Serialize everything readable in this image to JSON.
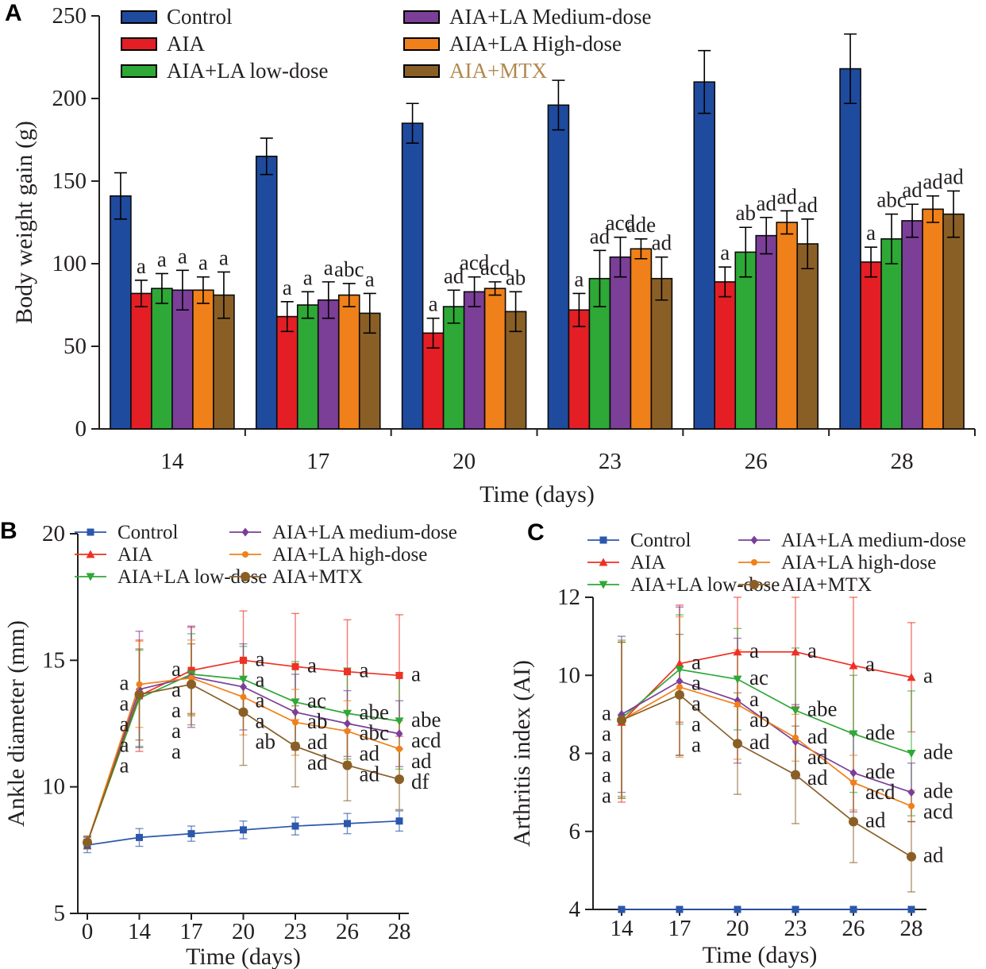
{
  "figure_title": "",
  "chart_data": [
    {
      "id": "A",
      "panel_letter": "A",
      "type": "bar",
      "xlabel": "Time (days)",
      "ylabel": "Body weight gain (g)",
      "ylim": [
        0,
        250
      ],
      "yticks": [
        0,
        50,
        100,
        150,
        200,
        250
      ],
      "categories": [
        "14",
        "17",
        "20",
        "23",
        "26",
        "28"
      ],
      "series": [
        {
          "name": "Control",
          "color": "#1F4B9E",
          "values": [
            141,
            165,
            185,
            196,
            210,
            218
          ],
          "errors": [
            14,
            11,
            12,
            15,
            19,
            21
          ],
          "sig": [
            "",
            "",
            "",
            "",
            "",
            ""
          ]
        },
        {
          "name": "AIA",
          "color": "#E41E25",
          "values": [
            82,
            68,
            58,
            72,
            89,
            101
          ],
          "errors": [
            8,
            9,
            9,
            10,
            9,
            9
          ],
          "sig": [
            "a",
            "a",
            "a",
            "a",
            "a",
            "a"
          ]
        },
        {
          "name": "AIA+LA low-dose",
          "color": "#2EA836",
          "values": [
            85,
            75,
            74,
            91,
            107,
            115
          ],
          "errors": [
            9,
            8,
            10,
            17,
            15,
            15
          ],
          "sig": [
            "a",
            "a",
            "ad",
            "ad",
            "ab",
            "abc"
          ]
        },
        {
          "name": "AIA+LA Medium-dose",
          "color": "#7B3F98",
          "values": [
            84,
            78,
            83,
            104,
            117,
            126
          ],
          "errors": [
            12,
            11,
            9,
            12,
            11,
            10
          ],
          "sig": [
            "a",
            "a",
            "acd",
            "acd",
            "ad",
            "ad"
          ]
        },
        {
          "name": "AIA+LA High-dose",
          "color": "#F08019",
          "values": [
            84,
            81,
            85,
            109,
            125,
            133
          ],
          "errors": [
            8,
            7,
            4,
            6,
            7,
            8
          ],
          "sig": [
            "a",
            "abc",
            "acd",
            "ade",
            "ad",
            "ad"
          ]
        },
        {
          "name": "AIA+MTX",
          "color": "#8A5F26",
          "values": [
            81,
            70,
            71,
            91,
            112,
            130
          ],
          "errors": [
            14,
            12,
            12,
            13,
            15,
            14
          ],
          "sig": [
            "a",
            "a",
            "ab",
            "ad",
            "ad",
            "ad"
          ],
          "legend_text_color": "#B2884E"
        }
      ],
      "legend_columns": [
        [
          "Control",
          "AIA",
          "AIA+LA low-dose"
        ],
        [
          "AIA+LA Medium-dose",
          "AIA+LA High-dose",
          "AIA+MTX"
        ]
      ]
    },
    {
      "id": "B",
      "panel_letter": "B",
      "type": "line",
      "xlabel": "Time (days)",
      "ylabel": "Ankle diameter (mm)",
      "ylim": [
        5,
        20
      ],
      "yticks": [
        5,
        10,
        15,
        20
      ],
      "categories": [
        "0",
        "14",
        "17",
        "20",
        "23",
        "26",
        "28"
      ],
      "sig_sides": [
        "right",
        "left",
        "left",
        "right",
        "right",
        "right",
        "right"
      ],
      "series": [
        {
          "name": "Control",
          "color": "#2B57AC",
          "marker": "square",
          "values": [
            7.7,
            8.0,
            8.15,
            8.3,
            8.45,
            8.55,
            8.65
          ],
          "errors": [
            0.3,
            0.35,
            0.3,
            0.35,
            0.35,
            0.4,
            0.4
          ],
          "sig": [
            "",
            "",
            "",
            "",
            "",
            "",
            ""
          ]
        },
        {
          "name": "AIA",
          "color": "#EE3124",
          "marker": "triangle-up",
          "plot_marker": "square",
          "values": [
            7.8,
            13.6,
            14.6,
            15.0,
            14.75,
            14.55,
            14.4
          ],
          "errors": [
            0.25,
            2.2,
            1.7,
            1.95,
            2.1,
            2.05,
            2.4
          ],
          "sig": [
            "",
            "a",
            "a",
            "a",
            "a",
            "a",
            "a"
          ]
        },
        {
          "name": "AIA+LA low-dose",
          "color": "#2EA836",
          "marker": "triangle-down",
          "values": [
            7.8,
            13.5,
            14.45,
            14.25,
            13.35,
            12.9,
            12.6
          ],
          "errors": [
            0.25,
            1.9,
            1.6,
            1.3,
            1.6,
            1.8,
            1.9
          ],
          "sig": [
            "",
            "a",
            "a",
            "a",
            "ac",
            "abe",
            "abe"
          ]
        },
        {
          "name": "AIA+LA medium-dose",
          "color": "#7B3F98",
          "marker": "diamond",
          "values": [
            7.8,
            13.85,
            14.35,
            13.95,
            12.95,
            12.5,
            12.1
          ],
          "errors": [
            0.25,
            2.3,
            2.0,
            1.7,
            1.5,
            1.3,
            1.3
          ],
          "sig": [
            "",
            "a",
            "a",
            "a",
            "ab",
            "abc",
            "acd"
          ]
        },
        {
          "name": "AIA+LA high-dose",
          "color": "#F08019",
          "marker": "circle",
          "values": [
            7.8,
            14.05,
            14.3,
            13.55,
            12.55,
            12.2,
            11.5
          ],
          "errors": [
            0.25,
            1.7,
            1.5,
            1.5,
            1.3,
            1.2,
            1.1
          ],
          "sig": [
            "",
            "a",
            "a",
            "a",
            "ad",
            "ad",
            "ad"
          ]
        },
        {
          "name": "AIA+MTX",
          "color": "#8A5F26",
          "marker": "circle-large",
          "values": [
            7.8,
            13.65,
            14.05,
            12.95,
            11.6,
            10.85,
            10.3
          ],
          "errors": [
            0.25,
            1.8,
            1.6,
            2.1,
            1.6,
            1.4,
            1.2
          ],
          "sig": [
            "",
            "a",
            "a",
            "ab",
            "ad",
            "ad",
            "df"
          ]
        }
      ],
      "legend_columns": [
        [
          "Control",
          "AIA",
          "AIA+LA low-dose"
        ],
        [
          "AIA+LA medium-dose",
          "AIA+LA high-dose",
          "AIA+MTX"
        ]
      ]
    },
    {
      "id": "C",
      "panel_letter": "C",
      "type": "line",
      "xlabel": "Time (days)",
      "ylabel": "Arthritis index (AI)",
      "ylim": [
        4,
        12
      ],
      "yticks": [
        4,
        6,
        8,
        10,
        12
      ],
      "categories": [
        "14",
        "17",
        "20",
        "23",
        "26",
        "28"
      ],
      "sig_sides": [
        "left",
        "right",
        "right",
        "right",
        "right",
        "right"
      ],
      "series": [
        {
          "name": "Control",
          "color": "#2B57AC",
          "marker": "square",
          "values": [
            4,
            4,
            4,
            4,
            4,
            4
          ],
          "errors": [
            0,
            0,
            0,
            0,
            0,
            0
          ],
          "sig": [
            "",
            "",
            "",
            "",
            "",
            ""
          ]
        },
        {
          "name": "AIA",
          "color": "#EE3124",
          "marker": "triangle-up",
          "values": [
            8.8,
            10.3,
            10.6,
            10.6,
            10.25,
            9.95
          ],
          "errors": [
            2.05,
            1.5,
            1.4,
            1.4,
            1.75,
            1.4
          ],
          "sig": [
            "a",
            "a",
            "a",
            "a",
            "a",
            "a"
          ]
        },
        {
          "name": "AIA+LA low-dose",
          "color": "#2EA836",
          "marker": "triangle-down",
          "values": [
            8.9,
            10.15,
            9.9,
            9.1,
            8.5,
            8.0
          ],
          "errors": [
            2.0,
            1.4,
            1.3,
            1.6,
            1.5,
            1.6
          ],
          "sig": [
            "a",
            "a",
            "ac",
            "abe",
            "ade",
            "ade"
          ]
        },
        {
          "name": "AIA+LA medium-dose",
          "color": "#7B3F98",
          "marker": "diamond",
          "values": [
            9.0,
            9.85,
            9.35,
            8.3,
            7.5,
            7.0
          ],
          "errors": [
            2.0,
            1.9,
            1.6,
            0.95,
            1.0,
            0.75
          ],
          "sig": [
            "a",
            "a",
            "a",
            "ad",
            "ade",
            "ade"
          ]
        },
        {
          "name": "AIA+LA high-dose",
          "color": "#F08019",
          "marker": "circle",
          "values": [
            8.85,
            9.7,
            9.25,
            8.4,
            7.25,
            6.65
          ],
          "errors": [
            2.0,
            1.8,
            1.4,
            0.6,
            0.7,
            0.4
          ],
          "sig": [
            "a",
            "a",
            "ab",
            "ad",
            "acd",
            "acd"
          ]
        },
        {
          "name": "AIA+MTX",
          "color": "#8A5F26",
          "marker": "circle-large",
          "values": [
            8.85,
            9.5,
            8.25,
            7.45,
            6.25,
            5.35
          ],
          "errors": [
            2.0,
            1.55,
            1.3,
            1.25,
            1.05,
            0.9
          ],
          "sig": [
            "a",
            "a",
            "ad",
            "ad",
            "ad",
            "ad"
          ]
        }
      ],
      "legend_columns": [
        [
          "Control",
          "AIA",
          "AIA+LA low-dose"
        ],
        [
          "AIA+LA medium-dose",
          "AIA+LA high-dose",
          "AIA+MTX"
        ]
      ]
    }
  ]
}
